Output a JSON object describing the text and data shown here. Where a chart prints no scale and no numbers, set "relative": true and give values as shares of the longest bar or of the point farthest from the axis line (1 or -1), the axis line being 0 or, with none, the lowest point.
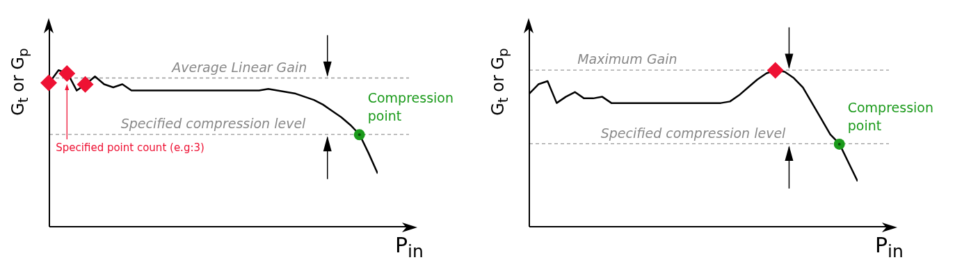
{
  "chart_data": [
    {
      "type": "line",
      "relative": true,
      "ylabel": "G$_{t}$ or G$_{p}$",
      "xlabel": "P$_{in}$",
      "categories": [
        null,
        null,
        null,
        null,
        null,
        null,
        null,
        null,
        null,
        null,
        null,
        null,
        null,
        null,
        null,
        null,
        null,
        null,
        null,
        null,
        null,
        null,
        null,
        null,
        null,
        null,
        null,
        null,
        null,
        null,
        null,
        null,
        null,
        null,
        null,
        null,
        null
      ],
      "series": [
        {
          "color": "#000000",
          "marker": "none",
          "line_style": "solid",
          "values": [
            0.92,
            1.0,
            0.98,
            0.87,
            0.91,
            0.96,
            0.91,
            0.89,
            0.91,
            0.87,
            0.87,
            0.87,
            0.87,
            0.87,
            0.87,
            0.87,
            0.87,
            0.87,
            0.87,
            0.87,
            0.87,
            0.87,
            0.87,
            0.87,
            0.88,
            0.87,
            0.86,
            0.85,
            0.83,
            0.81,
            0.78,
            0.74,
            0.7,
            0.65,
            0.59,
            0.47,
            0.34
          ]
        }
      ],
      "ref_lines": [
        {
          "axis": "y",
          "value": 0.95,
          "label": "Average Linear Gain",
          "color": "#999999",
          "line_style": "dashed"
        },
        {
          "axis": "y",
          "value": 0.59,
          "label": "Specified compression level",
          "color": "#999999",
          "line_style": "dashed"
        }
      ],
      "annotations": [
        "Compression point",
        "Specified point count (e.g:3)"
      ]
    },
    {
      "type": "line",
      "relative": true,
      "ylabel": "G$_{t}$ or G$_{p}$",
      "xlabel": "P$_{in}$",
      "categories": [
        null,
        null,
        null,
        null,
        null,
        null,
        null,
        null,
        null,
        null,
        null,
        null,
        null,
        null,
        null,
        null,
        null,
        null,
        null,
        null,
        null,
        null,
        null,
        null,
        null,
        null,
        null,
        null,
        null,
        null,
        null,
        null,
        null,
        null,
        null,
        null,
        null
      ],
      "series": [
        {
          "color": "#000000",
          "marker": "none",
          "line_style": "solid",
          "values": [
            0.85,
            0.91,
            0.93,
            0.79,
            0.83,
            0.86,
            0.82,
            0.82,
            0.83,
            0.79,
            0.79,
            0.79,
            0.79,
            0.79,
            0.79,
            0.79,
            0.79,
            0.79,
            0.79,
            0.79,
            0.79,
            0.79,
            0.8,
            0.84,
            0.89,
            0.94,
            0.98,
            1.0,
            0.99,
            0.95,
            0.89,
            0.79,
            0.69,
            0.59,
            0.53,
            0.41,
            0.29
          ]
        }
      ],
      "ref_lines": [
        {
          "axis": "y",
          "value": 1.0,
          "label": "Maximum Gain",
          "color": "#999999",
          "line_style": "dashed"
        },
        {
          "axis": "y",
          "value": 0.53,
          "label": "Specified compression level",
          "color": "#999999",
          "line_style": "dashed"
        }
      ],
      "annotations": [
        "Compression point"
      ]
    }
  ]
}
